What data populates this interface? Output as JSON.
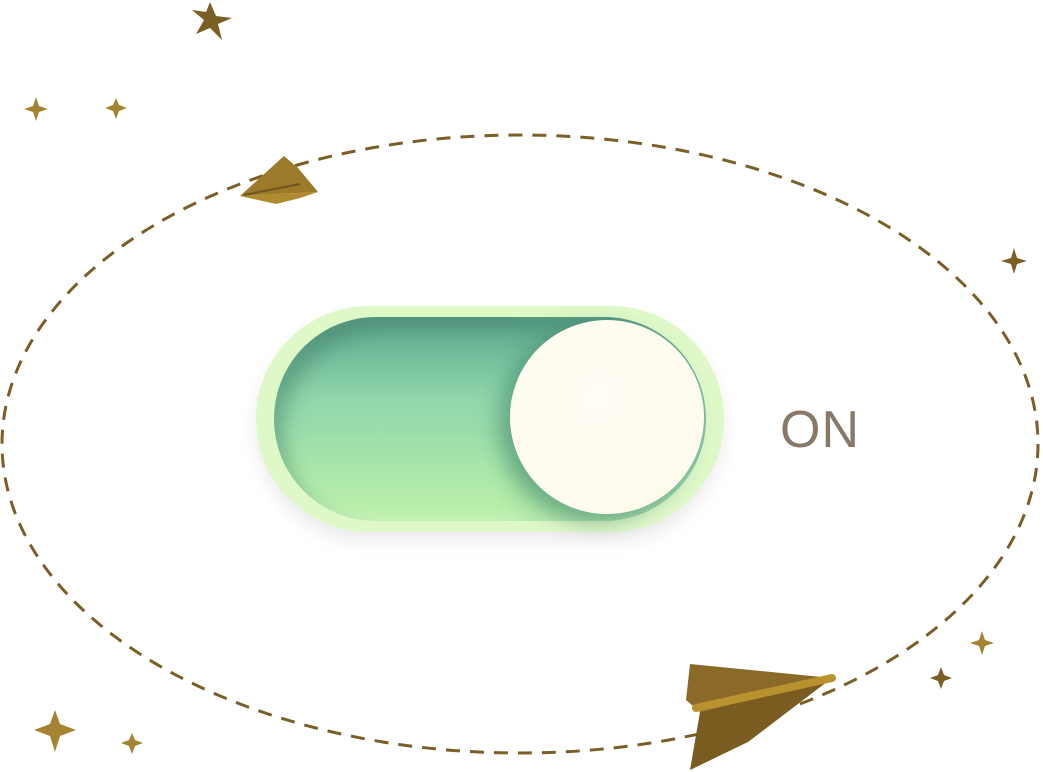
{
  "toggle": {
    "state_label": "ON",
    "is_on": true,
    "colors": {
      "track_outer": "#dff8c8",
      "track_inner_top": "#5ea88f",
      "track_inner_bottom": "#bdf2a9",
      "knob": "#fffbee",
      "label": "#8a7868"
    }
  },
  "decorations": {
    "orbit_path_color": "#7a5f28",
    "plane_color": "#8a6a26",
    "plane_accent_color": "#b08a2e",
    "star_color": "#8a6a26",
    "icons": [
      "paper-plane-icon",
      "sparkle-star-icon"
    ]
  }
}
